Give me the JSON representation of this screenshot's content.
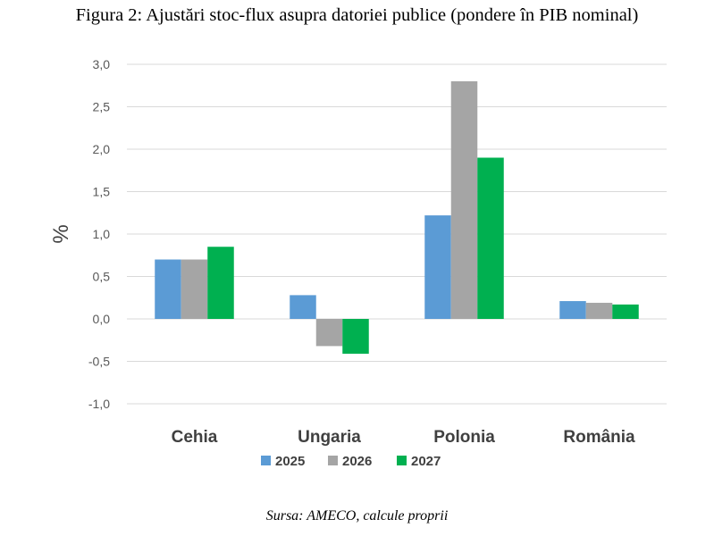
{
  "figure_title": "Figura 2: Ajustări stoc-flux asupra datoriei publice (pondere în PIB nominal)",
  "source_note": "Sursa: AMECO, calcule proprii",
  "chart_data": {
    "type": "bar",
    "title": "Figura 2: Ajustări stoc-flux asupra datoriei publice (pondere în PIB nominal)",
    "xlabel": "",
    "ylabel": "%",
    "ylim": [
      -1.0,
      3.0
    ],
    "ytick_values": [
      -1.0,
      -0.5,
      0.0,
      0.5,
      1.0,
      1.5,
      2.0,
      2.5,
      3.0
    ],
    "ytick_labels": [
      "-1,0",
      "-0,5",
      "0,0",
      "0,5",
      "1,0",
      "1,5",
      "2,0",
      "2,5",
      "3,0"
    ],
    "grid": true,
    "legend_position": "bottom",
    "categories": [
      "Cehia",
      "Ungaria",
      "Polonia",
      "România"
    ],
    "series": [
      {
        "name": "2025",
        "color": "#5b9bd5",
        "values": [
          0.7,
          0.28,
          1.22,
          0.21
        ]
      },
      {
        "name": "2026",
        "color": "#a5a5a5",
        "values": [
          0.7,
          -0.32,
          2.8,
          0.19
        ]
      },
      {
        "name": "2027",
        "color": "#00b050",
        "values": [
          0.85,
          -0.41,
          1.9,
          0.17
        ]
      }
    ]
  }
}
